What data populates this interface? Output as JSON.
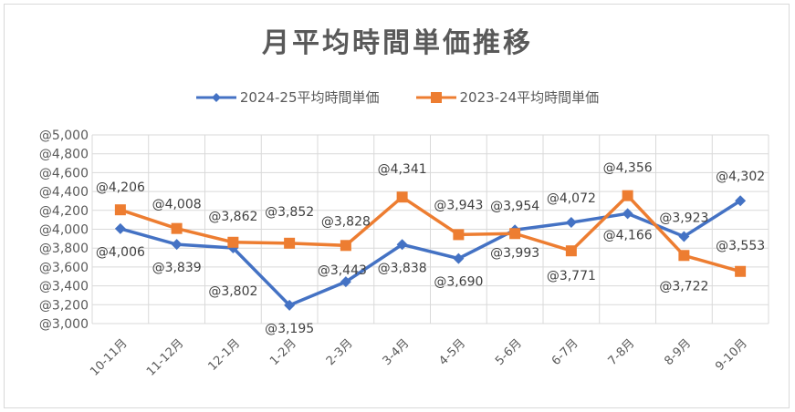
{
  "chart_data": {
    "type": "line",
    "title": "月平均時間単価推移",
    "categories": [
      "10-11月",
      "11-12月",
      "12-1月",
      "1-2月",
      "2-3月",
      "3-4月",
      "4-5月",
      "5-6月",
      "6-7月",
      "7-8月",
      "8-9月",
      "9-10月"
    ],
    "series": [
      {
        "name": "2024-25平均時間単価",
        "color": "#4472c4",
        "marker": "diamond",
        "values": [
          4006,
          3839,
          3802,
          3195,
          3443,
          3838,
          3690,
          3993,
          4072,
          4166,
          3923,
          4302
        ],
        "labels": [
          "@4,006",
          "@3,839",
          "@3,802",
          "@3,195",
          "@3,443",
          "@3,838",
          "@3,690",
          "@3,993",
          "@4,072",
          "@4,166",
          "@3,923",
          "@4,302"
        ]
      },
      {
        "name": "2023-24平均時間単価",
        "color": "#ed7d31",
        "marker": "square",
        "values": [
          4206,
          4008,
          3862,
          3852,
          3828,
          4341,
          3943,
          3954,
          3771,
          4356,
          3722,
          3553
        ],
        "labels": [
          "@4,206",
          "@4,008",
          "@3,862",
          "@3,852",
          "@3,828",
          "@4,341",
          "@3,943",
          "@3,954",
          "@3,771",
          "@4,356",
          "@3,722",
          "@3,553"
        ]
      }
    ],
    "ylim": [
      3000,
      5000
    ],
    "yticks": [
      3000,
      3200,
      3400,
      3600,
      3800,
      4000,
      4200,
      4400,
      4600,
      4800,
      5000
    ],
    "ytick_labels": [
      "@3,000",
      "@3,200",
      "@3,400",
      "@3,600",
      "@3,800",
      "@4,000",
      "@4,200",
      "@4,400",
      "@4,600",
      "@4,800",
      "@5,000"
    ],
    "grid": true,
    "legend": "top"
  }
}
